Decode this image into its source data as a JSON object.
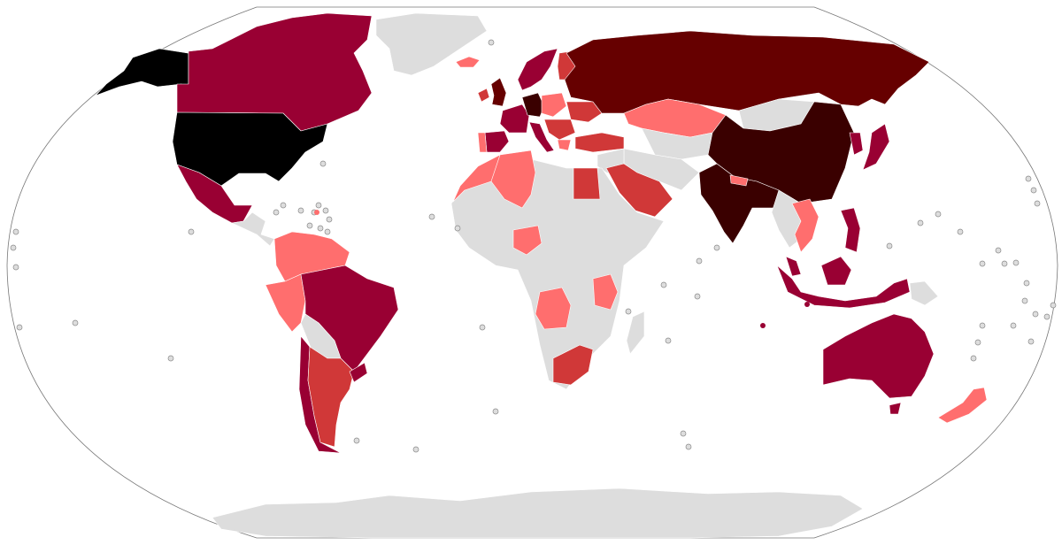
{
  "map": {
    "projection": "Robinson",
    "legend": [],
    "palette": {
      "ocean": "#ffffff",
      "no_data": "#dddddd",
      "tier_1": "#ff6e6e",
      "tier_2": "#d03838",
      "tier_3": "#990033",
      "tier_4": "#660000",
      "tier_5": "#3a0000",
      "tier_6": "#000000"
    },
    "regions": [
      {
        "id": "alaska",
        "tier": "tier_6"
      },
      {
        "id": "canada",
        "tier": "tier_3"
      },
      {
        "id": "greenland",
        "tier": "no_data"
      },
      {
        "id": "usa",
        "tier": "tier_6"
      },
      {
        "id": "mexico",
        "tier": "tier_3"
      },
      {
        "id": "central-america",
        "tier": "no_data"
      },
      {
        "id": "colombia-venezuela",
        "tier": "tier_1"
      },
      {
        "id": "peru",
        "tier": "tier_1"
      },
      {
        "id": "brazil",
        "tier": "tier_3"
      },
      {
        "id": "bolivia-paraguay",
        "tier": "no_data"
      },
      {
        "id": "chile",
        "tier": "tier_3"
      },
      {
        "id": "argentina",
        "tier": "tier_2"
      },
      {
        "id": "uruguay",
        "tier": "tier_3"
      },
      {
        "id": "iceland",
        "tier": "tier_1"
      },
      {
        "id": "ireland",
        "tier": "tier_2"
      },
      {
        "id": "uk",
        "tier": "tier_4"
      },
      {
        "id": "scandinavia",
        "tier": "tier_3"
      },
      {
        "id": "finland",
        "tier": "tier_2"
      },
      {
        "id": "france-benelux",
        "tier": "tier_3"
      },
      {
        "id": "germany",
        "tier": "tier_5"
      },
      {
        "id": "spain",
        "tier": "tier_3"
      },
      {
        "id": "portugal",
        "tier": "tier_1"
      },
      {
        "id": "italy",
        "tier": "tier_3"
      },
      {
        "id": "poland-czech",
        "tier": "tier_1"
      },
      {
        "id": "ukraine",
        "tier": "tier_2"
      },
      {
        "id": "balkans",
        "tier": "tier_2"
      },
      {
        "id": "greece",
        "tier": "tier_1"
      },
      {
        "id": "turkey",
        "tier": "tier_2"
      },
      {
        "id": "russia",
        "tier": "tier_4"
      },
      {
        "id": "kazakhstan",
        "tier": "tier_1"
      },
      {
        "id": "central-asia",
        "tier": "no_data"
      },
      {
        "id": "mongolia",
        "tier": "no_data"
      },
      {
        "id": "china",
        "tier": "tier_5"
      },
      {
        "id": "korea",
        "tier": "tier_3"
      },
      {
        "id": "japan",
        "tier": "tier_3"
      },
      {
        "id": "india",
        "tier": "tier_5"
      },
      {
        "id": "nepal",
        "tier": "tier_1"
      },
      {
        "id": "middle-east",
        "tier": "no_data"
      },
      {
        "id": "iran-afghanistan",
        "tier": "no_data"
      },
      {
        "id": "egypt",
        "tier": "tier_2"
      },
      {
        "id": "saudi-arabia",
        "tier": "tier_2"
      },
      {
        "id": "north-africa-west",
        "tier": "tier_1"
      },
      {
        "id": "algeria",
        "tier": "tier_1"
      },
      {
        "id": "africa",
        "tier": "no_data"
      },
      {
        "id": "nigeria",
        "tier": "tier_1"
      },
      {
        "id": "kenya-tanzania",
        "tier": "tier_1"
      },
      {
        "id": "angola",
        "tier": "tier_1"
      },
      {
        "id": "south-africa",
        "tier": "tier_2"
      },
      {
        "id": "madagascar",
        "tier": "no_data"
      },
      {
        "id": "mainland-se-asia",
        "tier": "no_data"
      },
      {
        "id": "thailand-vietnam",
        "tier": "tier_1"
      },
      {
        "id": "malaysia",
        "tier": "tier_3"
      },
      {
        "id": "indonesia",
        "tier": "tier_3"
      },
      {
        "id": "philippines",
        "tier": "tier_3"
      },
      {
        "id": "papua-new-guinea",
        "tier": "no_data"
      },
      {
        "id": "australia",
        "tier": "tier_3"
      },
      {
        "id": "tasmania",
        "tier": "tier_3"
      },
      {
        "id": "new-zealand",
        "tier": "tier_1"
      },
      {
        "id": "antarctica",
        "tier": "no_data"
      }
    ]
  }
}
